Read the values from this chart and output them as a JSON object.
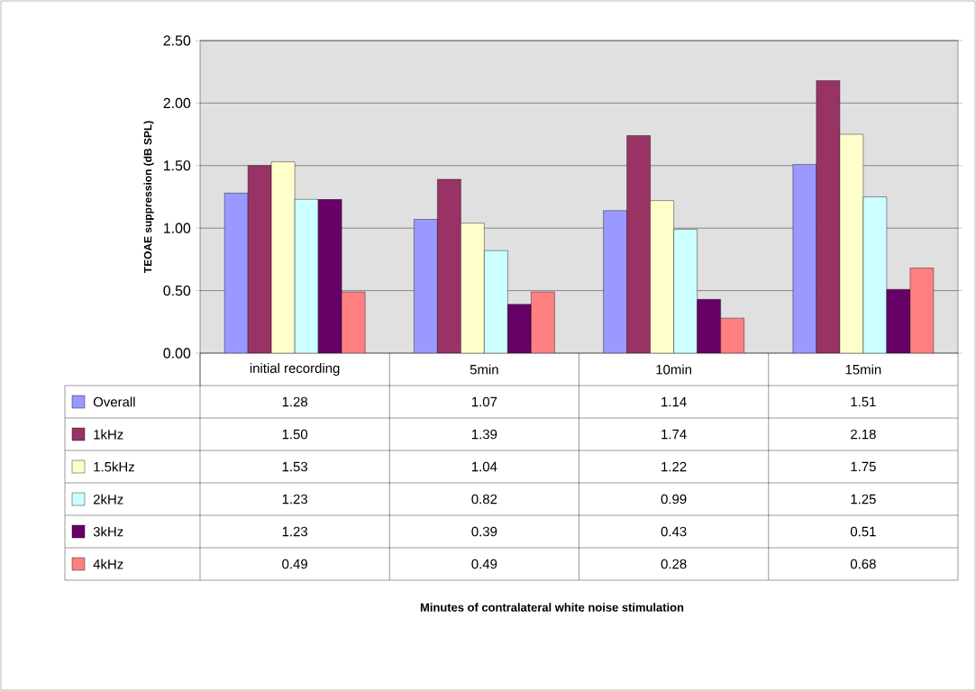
{
  "chart_data": {
    "type": "bar",
    "ylabel": "TEOAE suppression   (dB SPL)",
    "annotations": [
      "Minutes of contralateral white noise stimulation"
    ],
    "categories": [
      "initial recording",
      "5min",
      "10min",
      "15min"
    ],
    "series": [
      {
        "name": "Overall",
        "color": "#9999ff",
        "values": [
          1.28,
          1.07,
          1.14,
          1.51
        ],
        "value_labels": [
          "1.28",
          "1.07",
          "1.14",
          "1.51"
        ]
      },
      {
        "name": "1kHz",
        "color": "#993366",
        "values": [
          1.5,
          1.39,
          1.74,
          2.18
        ],
        "value_labels": [
          "1.50",
          "1.39",
          "1.74",
          "2.18"
        ]
      },
      {
        "name": "1.5kHz",
        "color": "#ffffcc",
        "values": [
          1.53,
          1.04,
          1.22,
          1.75
        ],
        "value_labels": [
          "1.53",
          "1.04",
          "1.22",
          "1.75"
        ]
      },
      {
        "name": "2kHz",
        "color": "#ccffff",
        "values": [
          1.23,
          0.82,
          0.99,
          1.25
        ],
        "value_labels": [
          "1.23",
          "0.82",
          "0.99",
          "1.25"
        ]
      },
      {
        "name": "3kHz",
        "color": "#660066",
        "values": [
          1.23,
          0.39,
          0.43,
          0.51
        ],
        "value_labels": [
          "1.23",
          "0.39",
          "0.43",
          "0.51"
        ]
      },
      {
        "name": "4kHz",
        "color": "#ff8080",
        "values": [
          0.49,
          0.49,
          0.28,
          0.68
        ],
        "value_labels": [
          "0.49",
          "0.49",
          "0.28",
          "0.68"
        ]
      }
    ],
    "ylim": [
      0,
      2.5
    ],
    "yticks": [
      {
        "value": 0,
        "label": "0.00"
      },
      {
        "value": 0.5,
        "label": "0.50"
      },
      {
        "value": 1,
        "label": "1.00"
      },
      {
        "value": 1.5,
        "label": "1.50"
      },
      {
        "value": 2,
        "label": "2.00"
      },
      {
        "value": 2.5,
        "label": "2.50"
      }
    ],
    "grid": "y",
    "legend": "bottom"
  }
}
